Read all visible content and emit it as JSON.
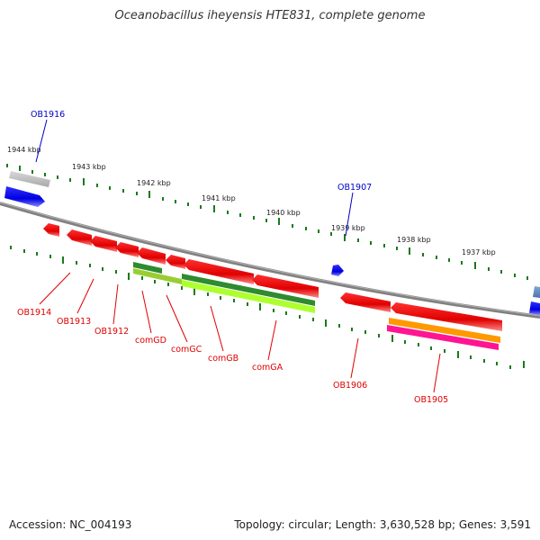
{
  "title": "Oceanobacillus iheyensis HTE831, complete genome",
  "footer": {
    "accession": "Accession: NC_004193",
    "summary": "Topology: circular; Length: 3,630,528 bp; Genes: 3,591"
  },
  "kbp_labels": [
    "1944 kbp",
    "1943 kbp",
    "1942 kbp",
    "1941 kbp",
    "1940 kbp",
    "1939 kbp",
    "1938 kbp",
    "1937 kbp"
  ],
  "genes": {
    "OB1916": "OB1916",
    "OB1907": "OB1907",
    "OB1914": "OB1914",
    "OB1913": "OB1913",
    "OB1912": "OB1912",
    "comGD": "comGD",
    "comGC": "comGC",
    "comGB": "comGB",
    "comGA": "comGA",
    "OB1906": "OB1906",
    "OB1905": "OB1905"
  },
  "colors": {
    "backbone": "#808080",
    "gene_red": "#ff0000",
    "gene_blue": "#0000ff",
    "gene_gray": "#c0c0c0",
    "gene_darkgreen": "#2e8b2e",
    "gene_lightgreen": "#9acd32",
    "gene_orange": "#ff9900",
    "gene_magenta": "#ff1493",
    "tick_green": "#1a7a1a",
    "label_red": "#e00000",
    "label_blue": "#0000cc"
  }
}
